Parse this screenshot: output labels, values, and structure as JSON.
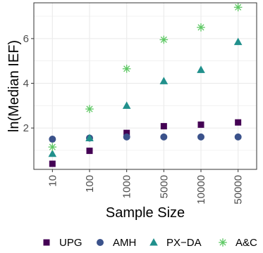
{
  "chart_data": {
    "type": "scatter",
    "categories": [
      "10",
      "100",
      "1000",
      "5000",
      "10000",
      "50000"
    ],
    "xlabel": "Sample Size",
    "ylabel": "ln(Median IEF)",
    "yticks": [
      2,
      4,
      6
    ],
    "ylim": [
      0.15,
      7.6
    ],
    "grid": true,
    "legend_position": "bottom",
    "series": [
      {
        "name": "UPG",
        "marker": "square",
        "color": "#440154",
        "values": [
          0.4,
          0.98,
          1.78,
          2.08,
          2.15,
          2.25
        ]
      },
      {
        "name": "AMH",
        "marker": "circle",
        "color": "#3b528b",
        "values": [
          1.5,
          1.55,
          1.6,
          1.6,
          1.6,
          1.6
        ]
      },
      {
        "name": "PX−DA",
        "marker": "triangle",
        "color": "#21908c",
        "values": [
          0.85,
          1.55,
          3.0,
          4.1,
          4.6,
          5.85
        ]
      },
      {
        "name": "A&C",
        "marker": "asterisk",
        "color": "#5dc863",
        "values": [
          1.15,
          2.85,
          4.65,
          5.95,
          6.5,
          7.4
        ]
      }
    ]
  }
}
